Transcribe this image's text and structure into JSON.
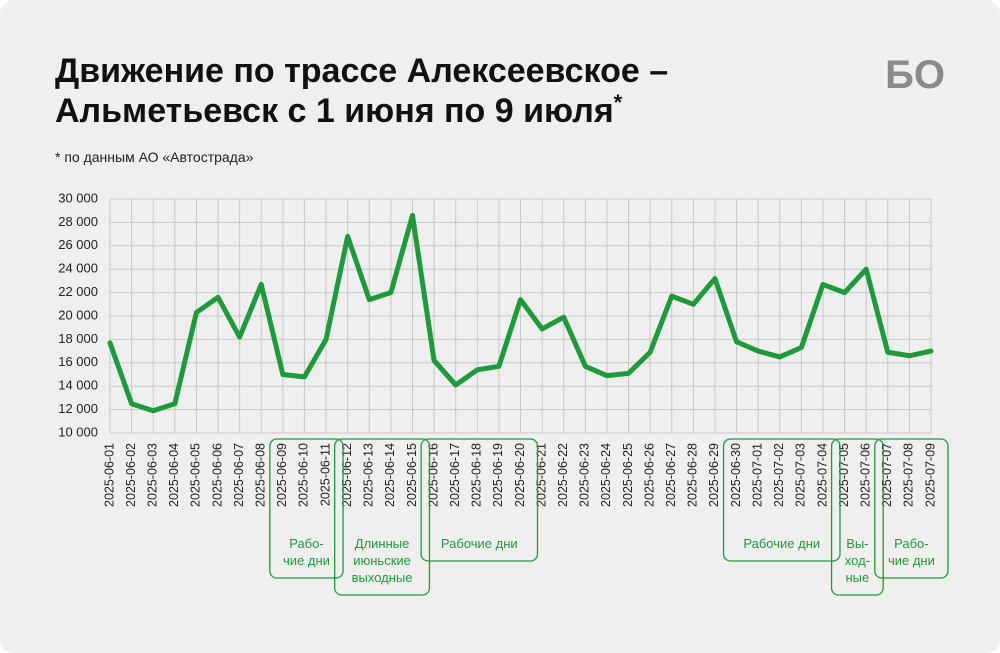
{
  "chart_data": {
    "type": "line",
    "title": [
      "Движение по трассе Алексеевское –",
      "Альметьевск с 1 июня по 9 июля"
    ],
    "title_mark": "*",
    "subtitle": "* по данным АО «Автострада»",
    "logo": "БО",
    "categories": [
      "2025-06-01",
      "2025-06-02",
      "2025-06-03",
      "2025-06-04",
      "2025-06-05",
      "2025-06-06",
      "2025-06-07",
      "2025-06-08",
      "2025-06-09",
      "2025-06-10",
      "2025-06-11",
      "2025-06-12",
      "2025-06-13",
      "2025-06-14",
      "2025-06-15",
      "2025-06-16",
      "2025-06-17",
      "2025-06-18",
      "2025-06-19",
      "2025-06-20",
      "2025-06-21",
      "2025-06-22",
      "2025-06-23",
      "2025-06-24",
      "2025-06-25",
      "2025-06-26",
      "2025-06-27",
      "2025-06-28",
      "2025-06-29",
      "2025-06-30",
      "2025-07-01",
      "2025-07-02",
      "2025-07-03",
      "2025-07-04",
      "2025-07-05",
      "2025-07-06",
      "2025-07-07",
      "2025-07-08",
      "2025-07-09"
    ],
    "values": [
      17700,
      12500,
      11900,
      12500,
      20300,
      21600,
      18200,
      22700,
      15000,
      14800,
      18000,
      26800,
      21400,
      22000,
      28600,
      16200,
      14100,
      15400,
      15700,
      21400,
      18900,
      19900,
      15700,
      14900,
      15100,
      16900,
      21700,
      21000,
      23200,
      17800,
      17000,
      16500,
      17300,
      22700,
      22000,
      24000,
      16900,
      16600,
      17000
    ],
    "color": "#1f9a3a",
    "ylim": [
      10000,
      30000
    ],
    "yticks": [
      {
        "value": 10000,
        "label": "10 000"
      },
      {
        "value": 12000,
        "label": "12 000"
      },
      {
        "value": 14000,
        "label": "14 000"
      },
      {
        "value": 16000,
        "label": "16 000"
      },
      {
        "value": 18000,
        "label": "18 000"
      },
      {
        "value": 20000,
        "label": "20 000"
      },
      {
        "value": 22000,
        "label": "22 000"
      },
      {
        "value": 24000,
        "label": "24 000"
      },
      {
        "value": 26000,
        "label": "26 000"
      },
      {
        "value": 28000,
        "label": "28 000"
      },
      {
        "value": 30000,
        "label": "30 000"
      }
    ],
    "grid": true,
    "annotations": [
      {
        "start": "2025-06-09",
        "end": "2025-06-11",
        "lines": [
          "Рабо-",
          "чие дни"
        ]
      },
      {
        "start": "2025-06-12",
        "end": "2025-06-15",
        "lines": [
          "Длинные",
          "июньские",
          "выходные"
        ]
      },
      {
        "start": "2025-06-16",
        "end": "2025-06-20",
        "lines": [
          "Рабочие дни"
        ]
      },
      {
        "start": "2025-06-30",
        "end": "2025-07-04",
        "lines": [
          "Рабочие дни"
        ]
      },
      {
        "start": "2025-07-05",
        "end": "2025-07-06",
        "lines": [
          "Вы-",
          "ход-",
          "ные"
        ]
      },
      {
        "start": "2025-07-07",
        "end": "2025-07-09",
        "lines": [
          "Рабо-",
          "чие дни"
        ]
      }
    ]
  }
}
